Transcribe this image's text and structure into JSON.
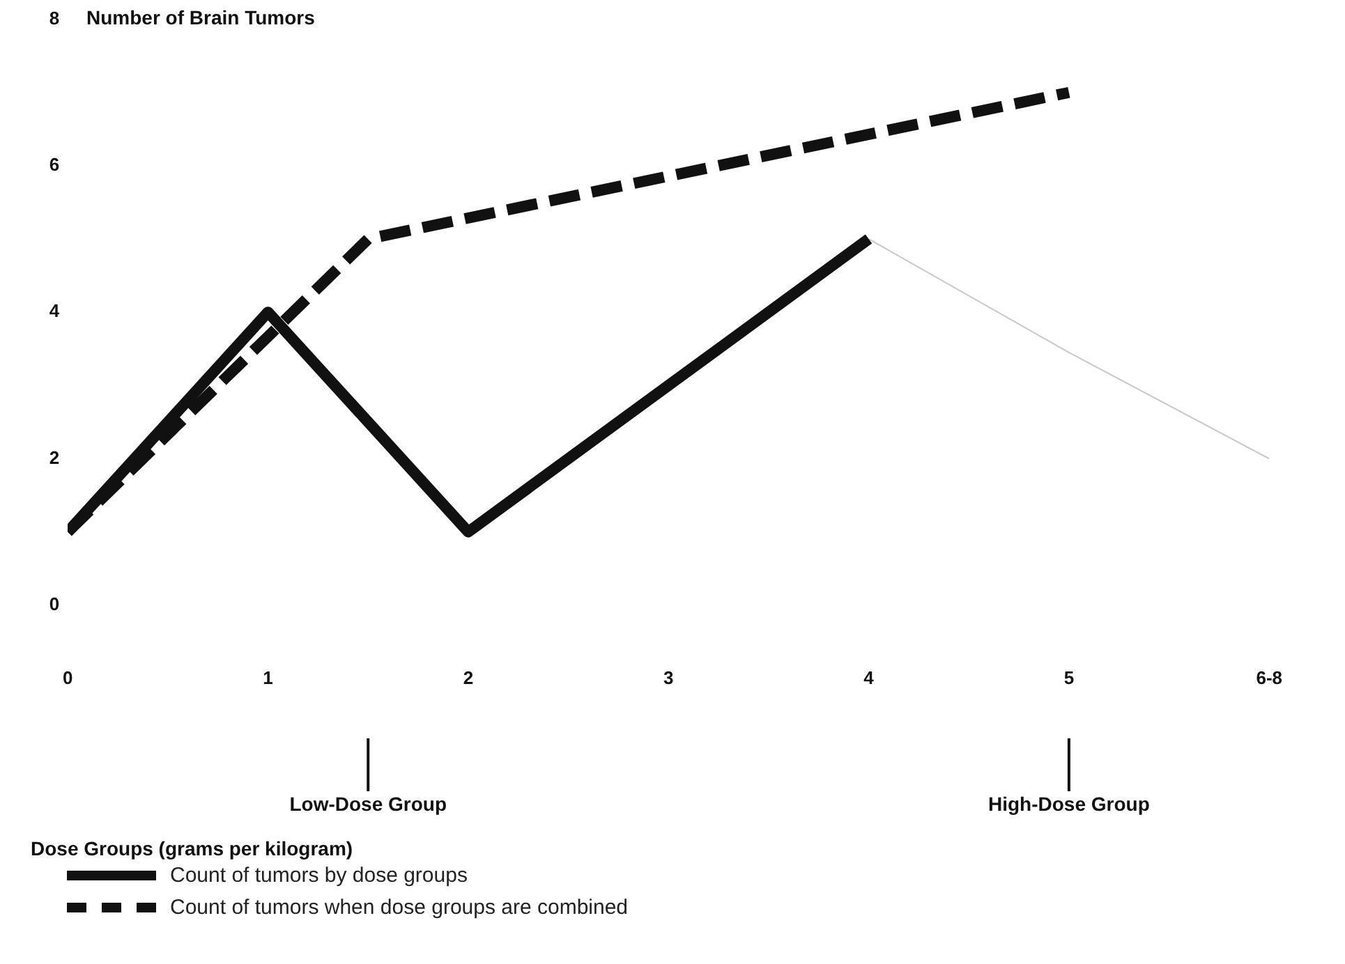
{
  "chart_data": {
    "type": "line",
    "ylabel": "Number of Brain Tumors",
    "xlim": [
      0,
      6
    ],
    "xticks": [
      0,
      1,
      2,
      3,
      4,
      5,
      {
        "value": 6,
        "label": "6-8"
      }
    ],
    "ylim": [
      0,
      8
    ],
    "yticks": [
      0,
      2,
      4,
      6,
      8
    ],
    "grid": false,
    "legend": "bottom left",
    "marker": "none",
    "annotations": [
      {
        "text": "Low-Dose Group",
        "x": 1.5
      },
      {
        "text": "High-Dose Group",
        "x": 5
      },
      "Dose Groups (grams per kilogram)"
    ],
    "series": [
      {
        "name": "Count of tumors by dose groups",
        "color": "#111111",
        "line_style": "solid",
        "x": [
          0,
          1,
          2,
          4
        ],
        "values": [
          1,
          4,
          1,
          5
        ]
      },
      {
        "name": "Count of tumors when dose groups are combined",
        "color": "#111111",
        "line_style": "dashed",
        "x": [
          0,
          1.5,
          5
        ],
        "values": [
          1,
          5,
          7
        ]
      },
      {
        "color": "#c8c8c8",
        "line_style": "solid",
        "x": [
          4,
          5,
          6
        ],
        "values": [
          5,
          3.45,
          2
        ]
      }
    ]
  }
}
